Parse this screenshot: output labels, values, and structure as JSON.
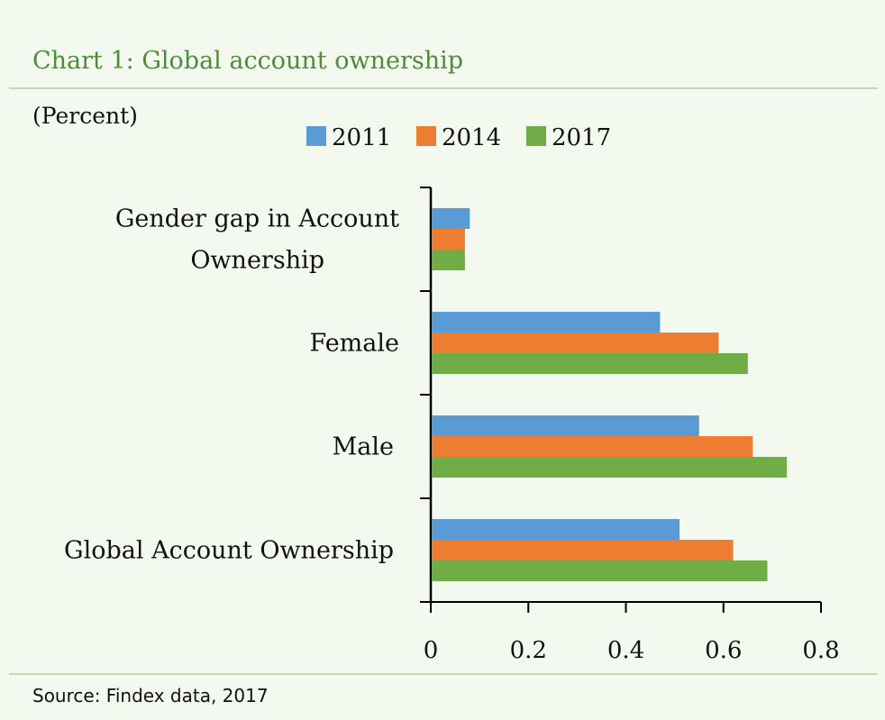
{
  "chart_data": {
    "type": "bar",
    "orientation": "horizontal",
    "title": "Chart 1: Global account ownership",
    "unit_label": "(Percent)",
    "categories": [
      "Gender gap in Account Ownership",
      "Female",
      "Male",
      "Global Account Ownership"
    ],
    "category_lines": [
      [
        "Gender gap in Account",
        "Ownership"
      ],
      [
        "Female"
      ],
      [
        "Male"
      ],
      [
        "Global Account Ownership"
      ]
    ],
    "series": [
      {
        "name": "2011",
        "color": "#5b9bd5",
        "values": [
          0.08,
          0.47,
          0.55,
          0.51
        ]
      },
      {
        "name": "2014",
        "color": "#ed7d31",
        "values": [
          0.07,
          0.59,
          0.66,
          0.62
        ]
      },
      {
        "name": "2017",
        "color": "#70ad47",
        "values": [
          0.07,
          0.65,
          0.73,
          0.69
        ]
      }
    ],
    "xlim": [
      0,
      0.8
    ],
    "xticks": [
      "0",
      "0.2",
      "0.4",
      "0.6",
      "0.8"
    ],
    "xtick_values": [
      0,
      0.2,
      0.4,
      0.6,
      0.8
    ],
    "legend_position": "top",
    "grid": false,
    "source": "Source: Findex data, 2017"
  }
}
